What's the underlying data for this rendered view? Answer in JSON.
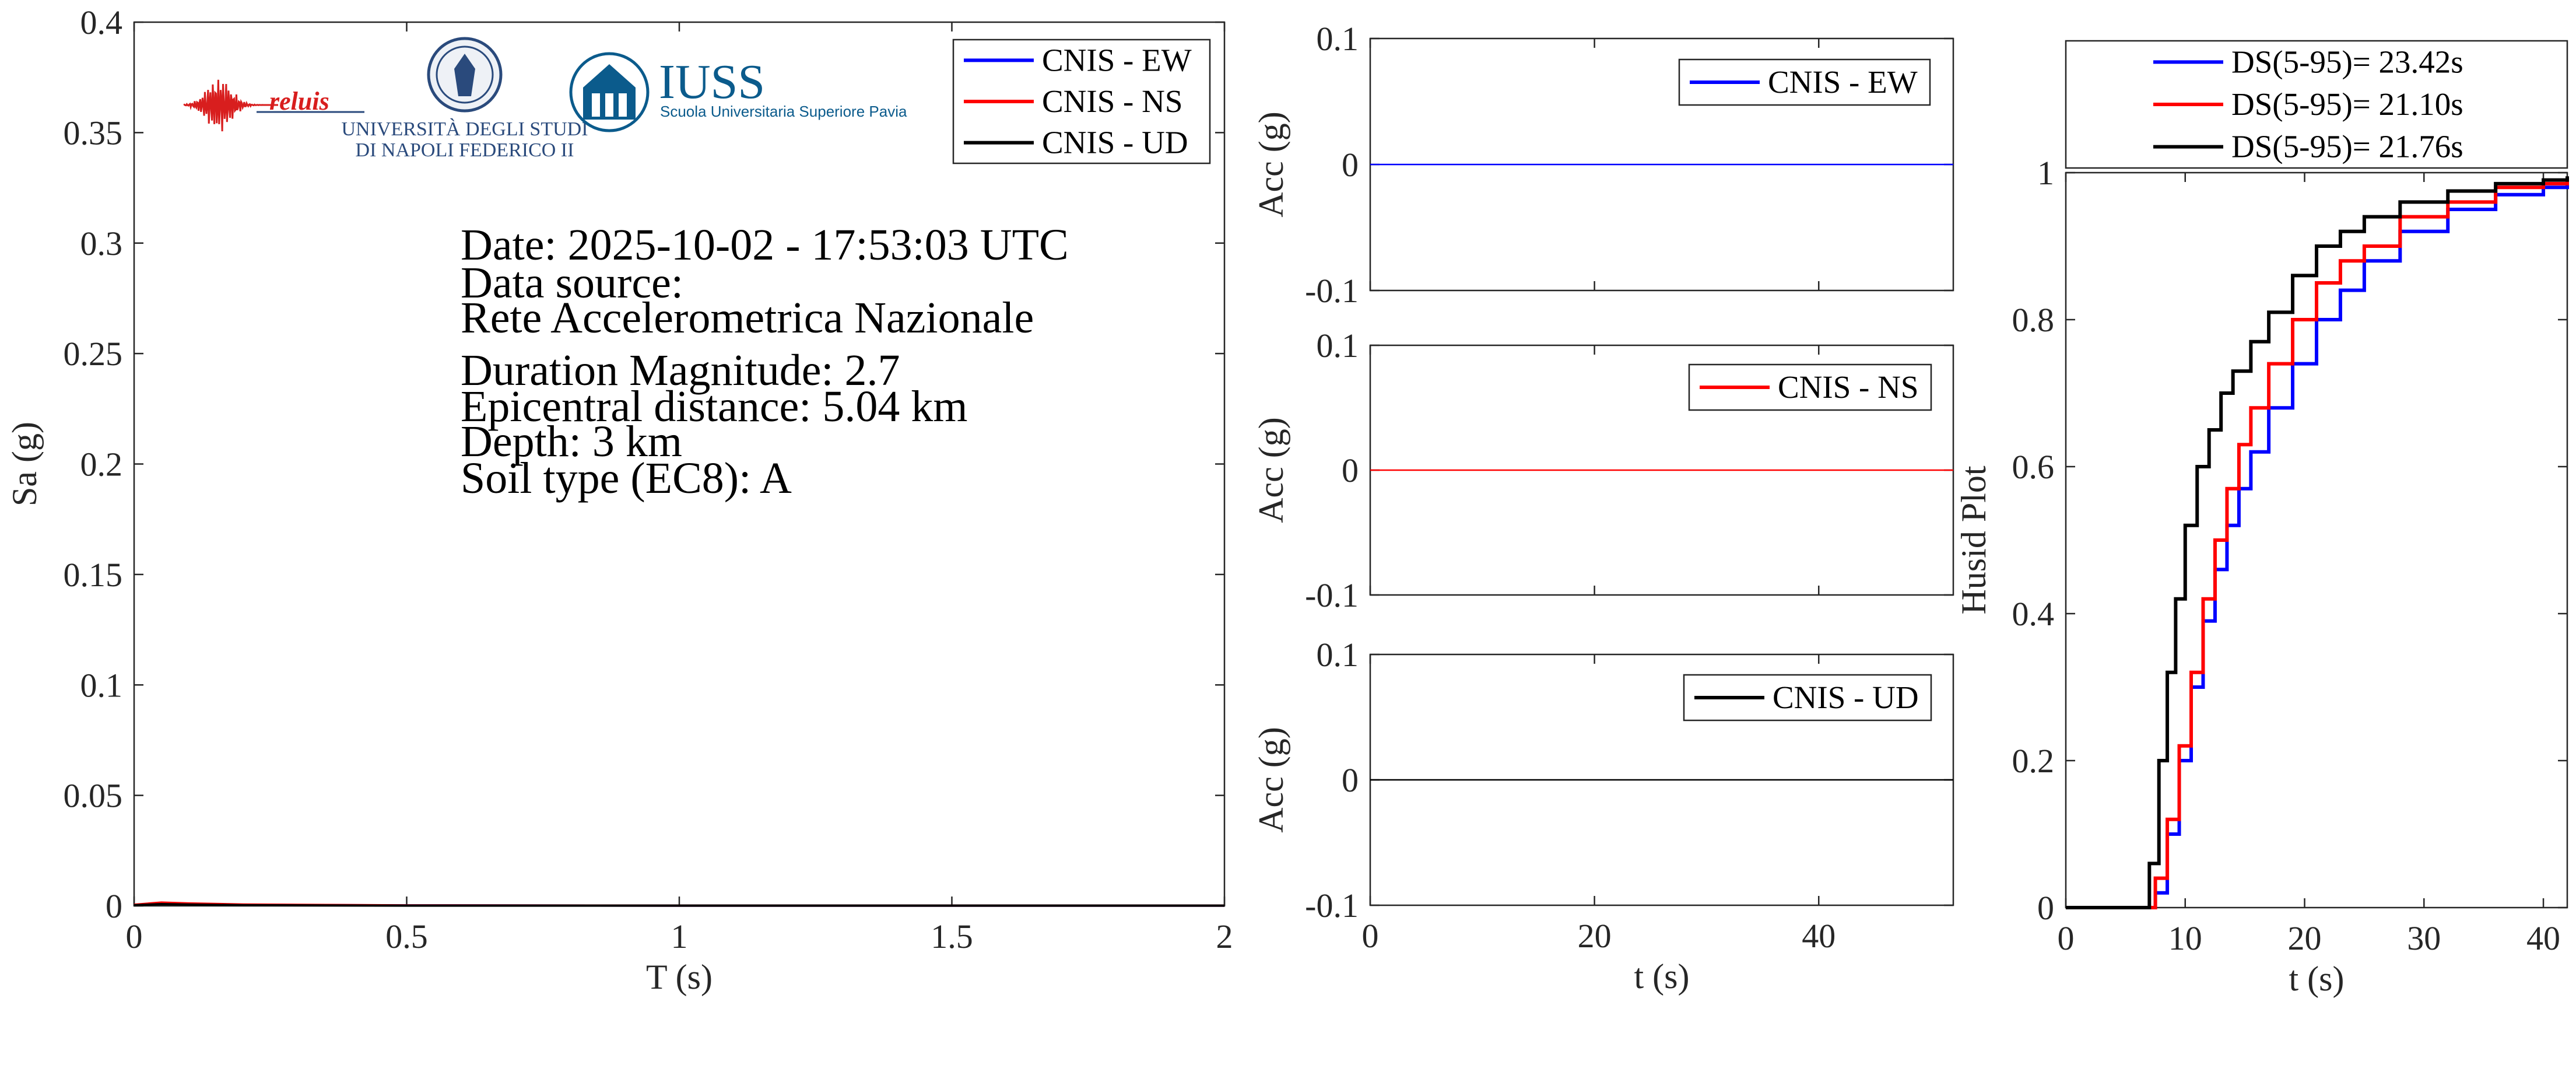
{
  "colors": {
    "ew": "#0000ff",
    "ns": "#ff0000",
    "ud": "#000000",
    "axis": "#262626",
    "reluis_red": "#d81e1e",
    "unina_blue": "#2a4a7c",
    "iuss_blue": "#0b5b8c"
  },
  "logos": {
    "reluis": "reluis",
    "unina_line1": "UNIVERSITÀ DEGLI STUDI",
    "unina_line2": "DI NAPOLI FEDERICO II",
    "iuss_title": "IUSS",
    "iuss_subtitle": "Scuola Universitaria Superiore Pavia"
  },
  "info": {
    "date": "Date: 2025-10-02 - 17:53:03 UTC",
    "source_label": "Data source:",
    "source_value": "Rete Accelerometrica Nazionale",
    "magnitude": "Duration Magnitude: 2.7",
    "distance": "Epicentral distance: 5.04 km",
    "depth": "Depth: 3 km",
    "soil": "Soil type (EC8): A"
  },
  "chart_data": [
    {
      "type": "line",
      "xlabel": "T (s)",
      "ylabel": "Sa (g)",
      "xlim": [
        0,
        2
      ],
      "ylim": [
        0,
        0.4
      ],
      "xticks": [
        "0",
        "0.5",
        "1",
        "1.5",
        "2"
      ],
      "yticks": [
        "0",
        "0.05",
        "0.1",
        "0.15",
        "0.2",
        "0.25",
        "0.3",
        "0.35",
        "0.4"
      ],
      "legend": [
        "CNIS - EW",
        "CNIS - NS",
        "CNIS - UD"
      ],
      "legend_position": "top-right",
      "series": [
        {
          "name": "CNIS - EW",
          "x": [
            0,
            0.05,
            0.1,
            0.2,
            0.5,
            1,
            1.5,
            2
          ],
          "y": [
            0.0004,
            0.0012,
            0.0009,
            0.0005,
            0.0002,
            0.0001,
            0.0001,
            0.0001
          ]
        },
        {
          "name": "CNIS - NS",
          "x": [
            0,
            0.05,
            0.1,
            0.2,
            0.5,
            1,
            1.5,
            2
          ],
          "y": [
            0.0005,
            0.0015,
            0.0011,
            0.0006,
            0.0002,
            0.0001,
            0.0001,
            0.0001
          ]
        },
        {
          "name": "CNIS - UD",
          "x": [
            0,
            0.05,
            0.1,
            0.2,
            0.5,
            1,
            1.5,
            2
          ],
          "y": [
            0.0003,
            0.0008,
            0.0006,
            0.0003,
            0.0001,
            0.0001,
            0.0001,
            0.0001
          ]
        }
      ]
    },
    {
      "type": "line",
      "ylabel": "Acc (g)",
      "xlim": [
        0,
        52
      ],
      "ylim": [
        -0.1,
        0.1
      ],
      "yticks": [
        "-0.1",
        "0",
        "0.1"
      ],
      "legend": [
        "CNIS - EW"
      ],
      "legend_position": "top-right",
      "series": [
        {
          "name": "CNIS - EW",
          "x": [
            0,
            52
          ],
          "y": [
            0,
            0
          ]
        }
      ]
    },
    {
      "type": "line",
      "ylabel": "Acc (g)",
      "xlim": [
        0,
        52
      ],
      "ylim": [
        -0.1,
        0.1
      ],
      "yticks": [
        "-0.1",
        "0",
        "0.1"
      ],
      "legend": [
        "CNIS - NS"
      ],
      "legend_position": "top-right",
      "series": [
        {
          "name": "CNIS - NS",
          "x": [
            0,
            52
          ],
          "y": [
            0,
            0
          ]
        }
      ]
    },
    {
      "type": "line",
      "xlabel": "t (s)",
      "ylabel": "Acc (g)",
      "xlim": [
        0,
        52
      ],
      "ylim": [
        -0.1,
        0.1
      ],
      "xticks": [
        "0",
        "20",
        "40"
      ],
      "yticks": [
        "-0.1",
        "0",
        "0.1"
      ],
      "legend": [
        "CNIS - UD"
      ],
      "legend_position": "top-right",
      "series": [
        {
          "name": "CNIS - UD",
          "x": [
            0,
            52
          ],
          "y": [
            0,
            0
          ]
        }
      ]
    },
    {
      "type": "line",
      "xlabel": "t (s)",
      "ylabel": "Husid Plot",
      "xlim": [
        0,
        42
      ],
      "ylim": [
        0,
        1
      ],
      "xticks": [
        "0",
        "10",
        "20",
        "30",
        "40"
      ],
      "yticks": [
        "0",
        "0.2",
        "0.4",
        "0.6",
        "0.8",
        "1"
      ],
      "legend": [
        "DS(5-95)= 23.42s",
        "DS(5-95)= 21.10s",
        "DS(5-95)= 21.76s"
      ],
      "legend_position": "top (outside)",
      "series": [
        {
          "name": "DS(5-95)= 23.42s",
          "x": [
            0,
            6.5,
            7.5,
            8.5,
            9.5,
            10.5,
            11.5,
            12.5,
            13.5,
            14.5,
            15.5,
            17,
            19,
            21,
            23,
            25,
            28,
            32,
            36,
            40,
            42
          ],
          "y": [
            0,
            0,
            0.02,
            0.1,
            0.2,
            0.3,
            0.39,
            0.46,
            0.52,
            0.57,
            0.62,
            0.68,
            0.74,
            0.8,
            0.84,
            0.88,
            0.92,
            0.95,
            0.97,
            0.98,
            0.99
          ]
        },
        {
          "name": "DS(5-95)= 21.10s",
          "x": [
            0,
            6.5,
            7.5,
            8.5,
            9.5,
            10.5,
            11.5,
            12.5,
            13.5,
            14.5,
            15.5,
            17,
            19,
            21,
            23,
            25,
            28,
            32,
            36,
            40,
            42
          ],
          "y": [
            0,
            0,
            0.04,
            0.12,
            0.22,
            0.32,
            0.42,
            0.5,
            0.57,
            0.63,
            0.68,
            0.74,
            0.8,
            0.85,
            0.88,
            0.9,
            0.94,
            0.96,
            0.98,
            0.985,
            0.99
          ]
        },
        {
          "name": "DS(5-95)= 21.76s",
          "x": [
            0,
            6.2,
            7,
            7.8,
            8.5,
            9.2,
            10,
            11,
            12,
            13,
            14,
            15.5,
            17,
            19,
            21,
            23,
            25,
            28,
            32,
            36,
            40,
            42
          ],
          "y": [
            0,
            0,
            0.06,
            0.2,
            0.32,
            0.42,
            0.52,
            0.6,
            0.65,
            0.7,
            0.73,
            0.77,
            0.81,
            0.86,
            0.9,
            0.92,
            0.94,
            0.96,
            0.975,
            0.985,
            0.99,
            0.995
          ]
        }
      ]
    }
  ]
}
